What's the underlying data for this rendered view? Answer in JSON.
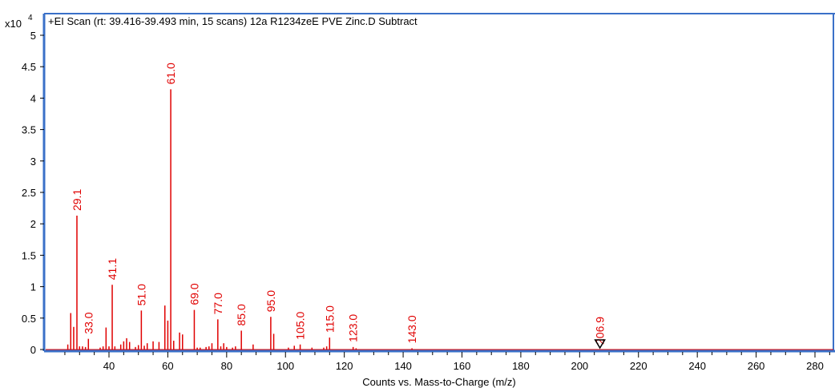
{
  "chart_data": {
    "type": "bar",
    "title": "+EI Scan (rt: 39.416-39.493 min, 15 scans) 12a R1234zeE PVE Zinc.D  Subtract",
    "xlabel": "Counts vs. Mass-to-Charge (m/z)",
    "ylabel": "",
    "y_multiplier_label": "x10",
    "y_multiplier_exp": "4",
    "xlim": [
      24,
      286
    ],
    "ylim": [
      0,
      5
    ],
    "x_ticks": [
      40,
      60,
      80,
      100,
      120,
      140,
      160,
      180,
      200,
      220,
      240,
      260,
      280
    ],
    "y_ticks": [
      "0",
      "0.5",
      "1",
      "1.5",
      "2",
      "2.5",
      "3",
      "3.5",
      "4",
      "4.5",
      "5"
    ],
    "grid": false,
    "colors": {
      "peaks": "#e00000",
      "frame": "#3a70c8",
      "marker": "#000000"
    },
    "peaks": [
      {
        "mz": 26.0,
        "y": 0.08
      },
      {
        "mz": 27.0,
        "y": 0.58
      },
      {
        "mz": 28.0,
        "y": 0.36
      },
      {
        "mz": 29.1,
        "y": 2.13
      },
      {
        "mz": 30.0,
        "y": 0.05
      },
      {
        "mz": 31.0,
        "y": 0.05
      },
      {
        "mz": 32.0,
        "y": 0.04
      },
      {
        "mz": 33.0,
        "y": 0.17
      },
      {
        "mz": 37.0,
        "y": 0.03
      },
      {
        "mz": 38.0,
        "y": 0.05
      },
      {
        "mz": 39.0,
        "y": 0.35
      },
      {
        "mz": 40.0,
        "y": 0.05
      },
      {
        "mz": 41.1,
        "y": 1.03
      },
      {
        "mz": 42.0,
        "y": 0.05
      },
      {
        "mz": 44.0,
        "y": 0.08
      },
      {
        "mz": 45.0,
        "y": 0.13
      },
      {
        "mz": 46.0,
        "y": 0.18
      },
      {
        "mz": 47.0,
        "y": 0.12
      },
      {
        "mz": 49.0,
        "y": 0.04
      },
      {
        "mz": 50.0,
        "y": 0.07
      },
      {
        "mz": 51.0,
        "y": 0.62
      },
      {
        "mz": 52.0,
        "y": 0.06
      },
      {
        "mz": 53.0,
        "y": 0.1
      },
      {
        "mz": 55.0,
        "y": 0.13
      },
      {
        "mz": 57.0,
        "y": 0.12
      },
      {
        "mz": 59.0,
        "y": 0.7
      },
      {
        "mz": 60.0,
        "y": 0.46
      },
      {
        "mz": 61.0,
        "y": 4.14
      },
      {
        "mz": 62.0,
        "y": 0.14
      },
      {
        "mz": 64.0,
        "y": 0.27
      },
      {
        "mz": 65.0,
        "y": 0.24
      },
      {
        "mz": 69.0,
        "y": 0.63
      },
      {
        "mz": 70.0,
        "y": 0.03
      },
      {
        "mz": 71.0,
        "y": 0.03
      },
      {
        "mz": 73.0,
        "y": 0.04
      },
      {
        "mz": 74.0,
        "y": 0.05
      },
      {
        "mz": 75.0,
        "y": 0.1
      },
      {
        "mz": 77.0,
        "y": 0.48
      },
      {
        "mz": 78.0,
        "y": 0.05
      },
      {
        "mz": 79.0,
        "y": 0.1
      },
      {
        "mz": 80.0,
        "y": 0.04
      },
      {
        "mz": 82.0,
        "y": 0.03
      },
      {
        "mz": 83.0,
        "y": 0.05
      },
      {
        "mz": 85.0,
        "y": 0.3
      },
      {
        "mz": 89.0,
        "y": 0.08
      },
      {
        "mz": 95.0,
        "y": 0.52
      },
      {
        "mz": 96.0,
        "y": 0.25
      },
      {
        "mz": 101.0,
        "y": 0.03
      },
      {
        "mz": 103.0,
        "y": 0.06
      },
      {
        "mz": 105.0,
        "y": 0.08
      },
      {
        "mz": 109.0,
        "y": 0.03
      },
      {
        "mz": 113.0,
        "y": 0.03
      },
      {
        "mz": 114.0,
        "y": 0.05
      },
      {
        "mz": 115.0,
        "y": 0.19
      },
      {
        "mz": 123.0,
        "y": 0.04
      },
      {
        "mz": 124.0,
        "y": 0.02
      },
      {
        "mz": 143.0,
        "y": 0.02
      }
    ],
    "peak_labels": [
      {
        "mz": 29.1,
        "y": 2.13,
        "text": "29.1"
      },
      {
        "mz": 33.0,
        "y": 0.17,
        "text": "33.0"
      },
      {
        "mz": 41.1,
        "y": 1.03,
        "text": "41.1"
      },
      {
        "mz": 51.0,
        "y": 0.62,
        "text": "51.0"
      },
      {
        "mz": 61.0,
        "y": 4.14,
        "text": "61.0"
      },
      {
        "mz": 69.0,
        "y": 0.63,
        "text": "69.0"
      },
      {
        "mz": 77.0,
        "y": 0.48,
        "text": "77.0"
      },
      {
        "mz": 85.0,
        "y": 0.3,
        "text": "85.0"
      },
      {
        "mz": 95.0,
        "y": 0.52,
        "text": "95.0"
      },
      {
        "mz": 105.0,
        "y": 0.08,
        "text": "105.0"
      },
      {
        "mz": 115.0,
        "y": 0.19,
        "text": "115.0"
      },
      {
        "mz": 123.0,
        "y": 0.04,
        "text": "123.0"
      },
      {
        "mz": 143.0,
        "y": 0.02,
        "text": "143.0"
      },
      {
        "mz": 206.9,
        "y": 0.0,
        "text": "206.9"
      }
    ],
    "marker": {
      "mz": 206.9,
      "symbol": "triangle-down",
      "name": "precursor-marker-icon"
    }
  }
}
